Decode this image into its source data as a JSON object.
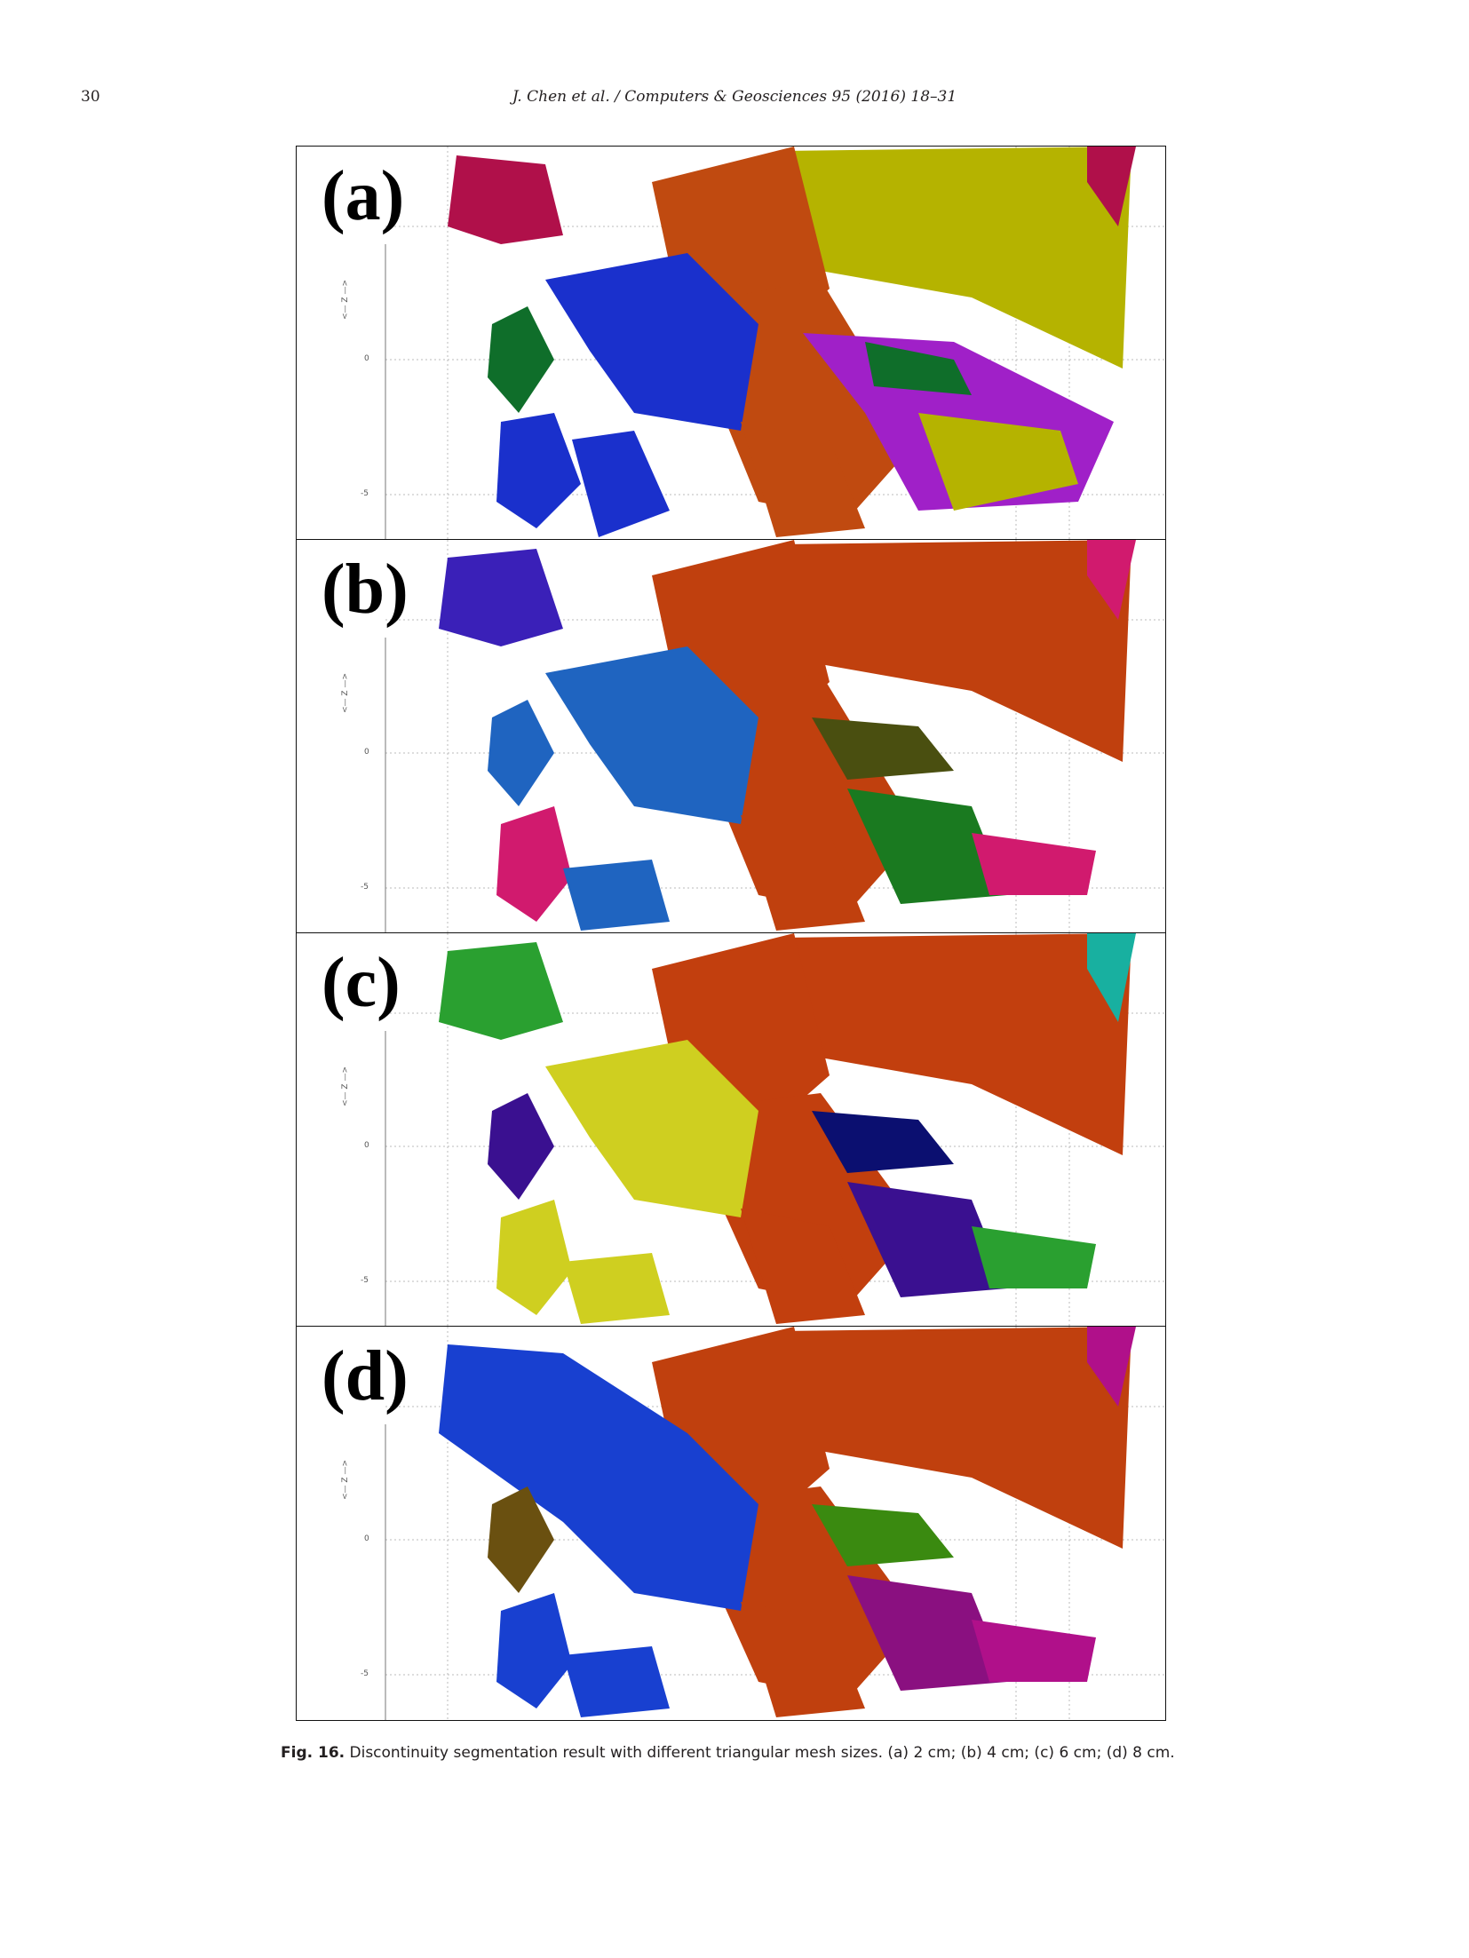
{
  "header": {
    "page_number": "30",
    "running_head": "J. Chen et al. / Computers & Geosciences 95 (2016) 18–31"
  },
  "figure": {
    "panels": [
      {
        "label": "(a)",
        "axis_label": "<— Z —>",
        "ticks": [
          "0",
          "-5"
        ]
      },
      {
        "label": "(b)",
        "axis_label": "<— Z —>",
        "ticks": [
          "0",
          "-5"
        ]
      },
      {
        "label": "(c)",
        "axis_label": "<— Z —>",
        "ticks": [
          "0",
          "-5"
        ]
      },
      {
        "label": "(d)",
        "axis_label": "<— Z —>",
        "ticks": [
          "0",
          "-5"
        ]
      }
    ],
    "caption_label": "Fig. 16.",
    "caption_text": "Discontinuity segmentation result with different triangular mesh sizes. (a) 2 cm; (b) 4 cm; (c) 6 cm; (d) 8 cm."
  },
  "colors": {
    "a": [
      "#b8b800",
      "#c24a10",
      "#1a2fcf",
      "#0f6e2a",
      "#b0104a",
      "#a020c8"
    ],
    "b": [
      "#c0400e",
      "#1f64c0",
      "#3a20b8",
      "#1a7a20",
      "#d11a6e",
      "#4a4f10"
    ],
    "c": [
      "#c23f0e",
      "#cfcf20",
      "#0b0f70",
      "#2aa030",
      "#18b0a0",
      "#3a1090"
    ],
    "d": [
      "#c0400e",
      "#1840d0",
      "#8a1080",
      "#3a8a10",
      "#b0108a",
      "#6a5010"
    ]
  }
}
